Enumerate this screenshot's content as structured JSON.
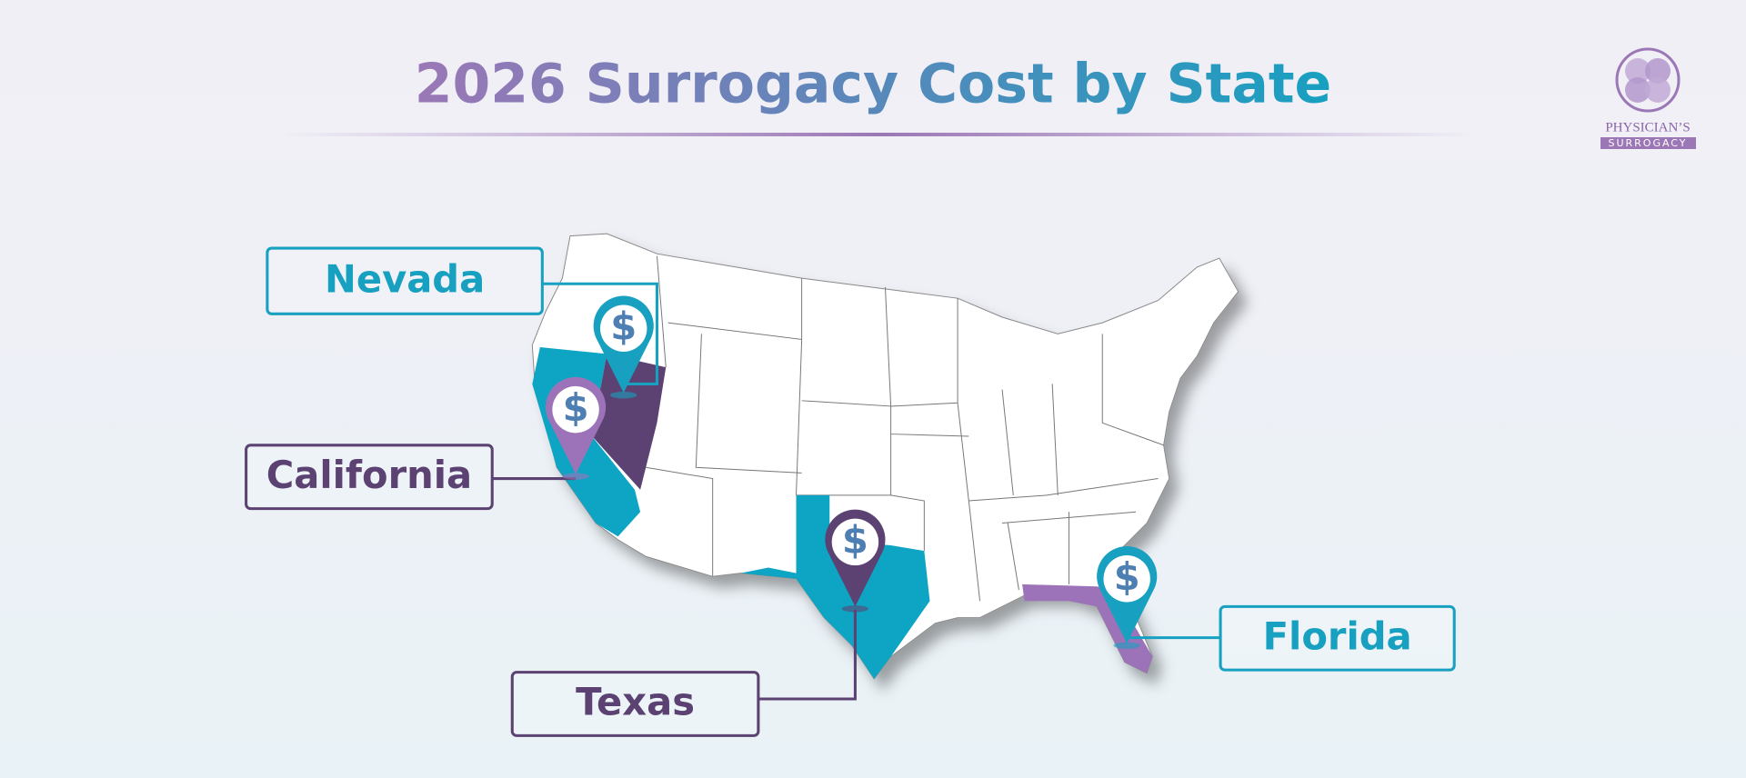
{
  "header": {
    "title": "2026 Surrogacy Cost by State"
  },
  "logo": {
    "line1": "PHYSICIAN’S",
    "line2": "SURROGACY"
  },
  "states": [
    {
      "label": "Nevada"
    },
    {
      "label": "California"
    },
    {
      "label": "Texas"
    },
    {
      "label": "Florida"
    }
  ],
  "pin_symbol": "$"
}
